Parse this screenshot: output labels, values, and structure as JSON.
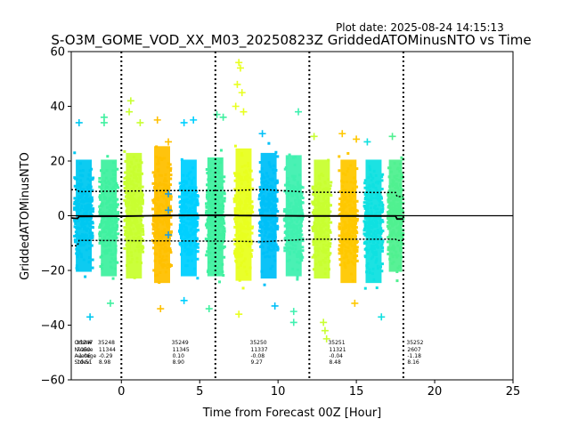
{
  "header": {
    "plot_date": "Plot date: 2025-08-24 14:15:13",
    "title": "S-O3M_GOME_VOD_XX_M03_20250823Z GriddedATOMinusNTO vs Time"
  },
  "chart_data": {
    "type": "scatter",
    "title": "S-O3M_GOME_VOD_XX_M03_20250823Z GriddedATOMinusNTO vs Time",
    "xlabel": "Time from Forecast 00Z [Hour]",
    "ylabel": "GriddedATOMinusNTO",
    "xlim": [
      -3.2,
      25
    ],
    "ylim": [
      -60,
      60
    ],
    "xticks": [
      "0",
      "5",
      "10",
      "15",
      "20",
      "25"
    ],
    "xtick_values": [
      0,
      5,
      10,
      15,
      20,
      25
    ],
    "yticks": [
      "60",
      "40",
      "20",
      "0",
      "−20",
      "−40",
      "−60"
    ],
    "ytick_values": [
      60,
      40,
      20,
      0,
      -20,
      -40,
      -60
    ],
    "grid": false,
    "marker": "+",
    "forecast_boundaries": [
      0,
      6,
      12,
      18
    ],
    "bands": [
      {
        "x": -2.4,
        "hw": 0.6,
        "ymin": -25,
        "ymax": 25,
        "color": "#00c8f0"
      },
      {
        "x": -0.8,
        "hw": 0.6,
        "ymin": -27,
        "ymax": 25,
        "color": "#40f0a0"
      },
      {
        "x": 0.8,
        "hw": 0.6,
        "ymin": -28,
        "ymax": 28,
        "color": "#c8ff30"
      },
      {
        "x": 2.6,
        "hw": 0.6,
        "ymin": -30,
        "ymax": 31,
        "color": "#ffc000"
      },
      {
        "x": 4.3,
        "hw": 0.6,
        "ymin": -27,
        "ymax": 25,
        "color": "#00d0ff"
      },
      {
        "x": 6.0,
        "hw": 0.6,
        "ymin": -27,
        "ymax": 26,
        "color": "#40f0a0"
      },
      {
        "x": 7.8,
        "hw": 0.6,
        "ymin": -29,
        "ymax": 30,
        "color": "#e8ff20"
      },
      {
        "x": 9.4,
        "hw": 0.6,
        "ymin": -28,
        "ymax": 28,
        "color": "#00c0f8"
      },
      {
        "x": 11.0,
        "hw": 0.6,
        "ymin": -27,
        "ymax": 27,
        "color": "#40f0b0"
      },
      {
        "x": 12.8,
        "hw": 0.6,
        "ymin": -28,
        "ymax": 25,
        "color": "#c8ff30"
      },
      {
        "x": 14.5,
        "hw": 0.6,
        "ymin": -30,
        "ymax": 25,
        "color": "#ffc800"
      },
      {
        "x": 16.1,
        "hw": 0.6,
        "ymin": -30,
        "ymax": 25,
        "color": "#10e0e0"
      },
      {
        "x": 17.5,
        "hw": 0.5,
        "ymin": -25,
        "ymax": 25,
        "color": "#50f090"
      }
    ],
    "outliers": [
      {
        "x": -2.7,
        "y": 34,
        "color": "#00c8f0"
      },
      {
        "x": -2.0,
        "y": -37,
        "color": "#00c8f0"
      },
      {
        "x": -1.1,
        "y": 36,
        "color": "#40f0a0"
      },
      {
        "x": -1.1,
        "y": 34,
        "color": "#40f0a0"
      },
      {
        "x": -0.7,
        "y": -32,
        "color": "#40f0a0"
      },
      {
        "x": 0.6,
        "y": 42,
        "color": "#c8ff30"
      },
      {
        "x": 0.5,
        "y": 38,
        "color": "#c8ff30"
      },
      {
        "x": 1.2,
        "y": 34,
        "color": "#c8ff30"
      },
      {
        "x": 2.3,
        "y": 35,
        "color": "#ffc000"
      },
      {
        "x": 2.5,
        "y": -34,
        "color": "#ffc000"
      },
      {
        "x": 3.0,
        "y": 27,
        "color": "#ffc000"
      },
      {
        "x": 3.0,
        "y": 8,
        "color": "#1e9be0"
      },
      {
        "x": 3.0,
        "y": 2,
        "color": "#1e9be0"
      },
      {
        "x": 3.0,
        "y": -7,
        "color": "#1e9be0"
      },
      {
        "x": 4.0,
        "y": 34,
        "color": "#00d0ff"
      },
      {
        "x": 4.6,
        "y": 35,
        "color": "#00d0ff"
      },
      {
        "x": 4.0,
        "y": -31,
        "color": "#00d0ff"
      },
      {
        "x": 5.6,
        "y": -34,
        "color": "#40f0a0"
      },
      {
        "x": 6.1,
        "y": 37,
        "color": "#40f0a0"
      },
      {
        "x": 6.5,
        "y": 36,
        "color": "#40f0a0"
      },
      {
        "x": 7.5,
        "y": 56,
        "color": "#e8ff20"
      },
      {
        "x": 7.6,
        "y": 54,
        "color": "#e8ff20"
      },
      {
        "x": 7.4,
        "y": 48,
        "color": "#e8ff20"
      },
      {
        "x": 7.7,
        "y": 45,
        "color": "#e8ff20"
      },
      {
        "x": 7.3,
        "y": 40,
        "color": "#e8ff20"
      },
      {
        "x": 7.8,
        "y": 38,
        "color": "#e8ff20"
      },
      {
        "x": 7.5,
        "y": -36,
        "color": "#e8ff20"
      },
      {
        "x": 9.0,
        "y": 30,
        "color": "#00c0f8"
      },
      {
        "x": 9.8,
        "y": -33,
        "color": "#00c0f8"
      },
      {
        "x": 11.0,
        "y": -39,
        "color": "#40f0b0"
      },
      {
        "x": 11.3,
        "y": 38,
        "color": "#40f0b0"
      },
      {
        "x": 11.0,
        "y": -35,
        "color": "#40f0b0"
      },
      {
        "x": 12.3,
        "y": 29,
        "color": "#c8ff30"
      },
      {
        "x": 12.9,
        "y": -39,
        "color": "#c8ff30"
      },
      {
        "x": 13.0,
        "y": -42,
        "color": "#c8ff30"
      },
      {
        "x": 13.1,
        "y": -45,
        "color": "#c8ff30"
      },
      {
        "x": 14.1,
        "y": 30,
        "color": "#ffc800"
      },
      {
        "x": 14.9,
        "y": -32,
        "color": "#ffc800"
      },
      {
        "x": 15.0,
        "y": 28,
        "color": "#ffc800"
      },
      {
        "x": 16.6,
        "y": -37,
        "color": "#10e0e0"
      },
      {
        "x": 15.7,
        "y": 27,
        "color": "#10e0e0"
      },
      {
        "x": 17.3,
        "y": 29,
        "color": "#50f090"
      }
    ],
    "std_upper": [
      [
        -3.2,
        9.5
      ],
      [
        -2.8,
        9.5
      ],
      [
        -2.7,
        8.8
      ],
      [
        3,
        9.2
      ],
      [
        7,
        9.2
      ],
      [
        9,
        9.6
      ],
      [
        12,
        8.6
      ],
      [
        17.5,
        8.5
      ],
      [
        17.6,
        7.0
      ],
      [
        18,
        7.0
      ]
    ],
    "std_lower": [
      [
        -3.2,
        -11
      ],
      [
        -2.8,
        -11
      ],
      [
        -2.7,
        -9.0
      ],
      [
        3,
        -9.2
      ],
      [
        7,
        -9.3
      ],
      [
        9,
        -9.5
      ],
      [
        12,
        -8.6
      ],
      [
        17.5,
        -8.6
      ],
      [
        17.6,
        -9.0
      ],
      [
        18,
        -9.0
      ]
    ],
    "mean_line": [
      [
        -3.2,
        -0.8
      ],
      [
        -2.8,
        -1.0
      ],
      [
        -2.7,
        -0.3
      ],
      [
        0,
        -0.2
      ],
      [
        3,
        0.1
      ],
      [
        7,
        0.2
      ],
      [
        7.5,
        0.1
      ],
      [
        12,
        -0.1
      ],
      [
        17.5,
        -0.1
      ],
      [
        17.6,
        -1.2
      ],
      [
        18,
        -1.2
      ]
    ],
    "zero_line": 0,
    "stats": {
      "row_labels": [
        "Orbit#",
        "Nvalue",
        "Average",
        "Stdev"
      ],
      "groups": [
        {
          "x": -2.9,
          "lines": [
            "35247",
            "7050",
            "-1.06",
            "10.51"
          ]
        },
        {
          "x": -1.5,
          "lines": [
            "35248",
            "11344",
            "-0.29",
            "8.98"
          ]
        },
        {
          "x": 3.2,
          "lines": [
            "35249",
            "11345",
            "0.10",
            "8.90"
          ]
        },
        {
          "x": 8.2,
          "lines": [
            "35250",
            "11337",
            "-0.08",
            "9.27"
          ]
        },
        {
          "x": 13.2,
          "lines": [
            "35251",
            "11321",
            "-0.04",
            "8.48"
          ]
        },
        {
          "x": 18.2,
          "lines": [
            "35252",
            "2607",
            "-1.18",
            "8.16"
          ]
        }
      ]
    }
  }
}
